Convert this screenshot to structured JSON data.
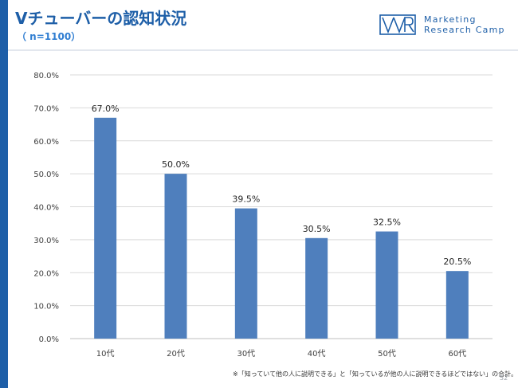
{
  "slide": {
    "title": "Vチューバーの認知状況",
    "subtitle": "（ n=1100）",
    "logo_line1": "Marketing",
    "logo_line2": "Research Camp",
    "footnote": "※「知っていて他の人に説明できる」と「知っているが他の人に説明できるほどではない」の合計。",
    "page_number": "52"
  },
  "colors": {
    "accent": "#1e5fa8",
    "bar": "#4f7fbd",
    "grid": "#d9d9d9"
  },
  "chart_data": {
    "type": "bar",
    "categories": [
      "10代",
      "20代",
      "30代",
      "40代",
      "50代",
      "60代"
    ],
    "values": [
      67.0,
      50.0,
      39.5,
      30.5,
      32.5,
      20.5
    ],
    "value_labels": [
      "67.0%",
      "50.0%",
      "39.5%",
      "30.5%",
      "32.5%",
      "20.5%"
    ],
    "y_ticks": [
      "0.0%",
      "10.0%",
      "20.0%",
      "30.0%",
      "40.0%",
      "50.0%",
      "60.0%",
      "70.0%",
      "80.0%"
    ],
    "ylim": [
      0,
      80
    ],
    "grid": true,
    "title": "",
    "xlabel": "",
    "ylabel": ""
  }
}
